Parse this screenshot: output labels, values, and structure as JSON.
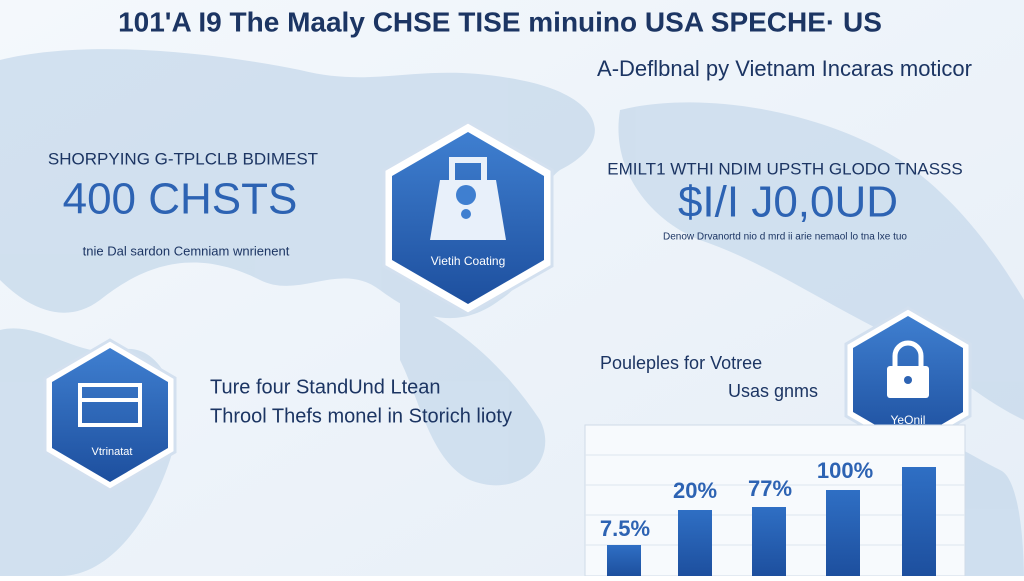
{
  "header": {
    "title": "101'A I9 The Maaly CHSE TISE minuino USA SPECHE· US",
    "subtitle": "A-Deflbnal py Vietnam Incaras moticor"
  },
  "left_stat": {
    "heading": "SHORPYING G-TPLCLB BDIMEST",
    "value": "400 CHSTS",
    "note": "tnie Dal sardon Cemniam wnrienent"
  },
  "center_badge": {
    "label": "Vietih Coating"
  },
  "right_stat": {
    "heading": "EMILT1 WTHI NDIM UPSTH GLODO TNASSS",
    "value": "$I/I J0,0UD",
    "note": "Denow Drvanortd nio d mrd ii arie nemaol lo tna lxe tuo"
  },
  "left_badge": {
    "label": "Vtrinatat"
  },
  "middle_text": {
    "lines": [
      "Ture four StandUnd Ltean",
      "Throol Thefs monel in Storich lioty"
    ]
  },
  "chart_heading": {
    "lines": [
      "Pouleples for Votree",
      "Usas gnms"
    ]
  },
  "lock_badge": {
    "label": "YeOnil"
  },
  "bar_labels": [
    "7.5%",
    "20%",
    "77%",
    "100%"
  ]
}
